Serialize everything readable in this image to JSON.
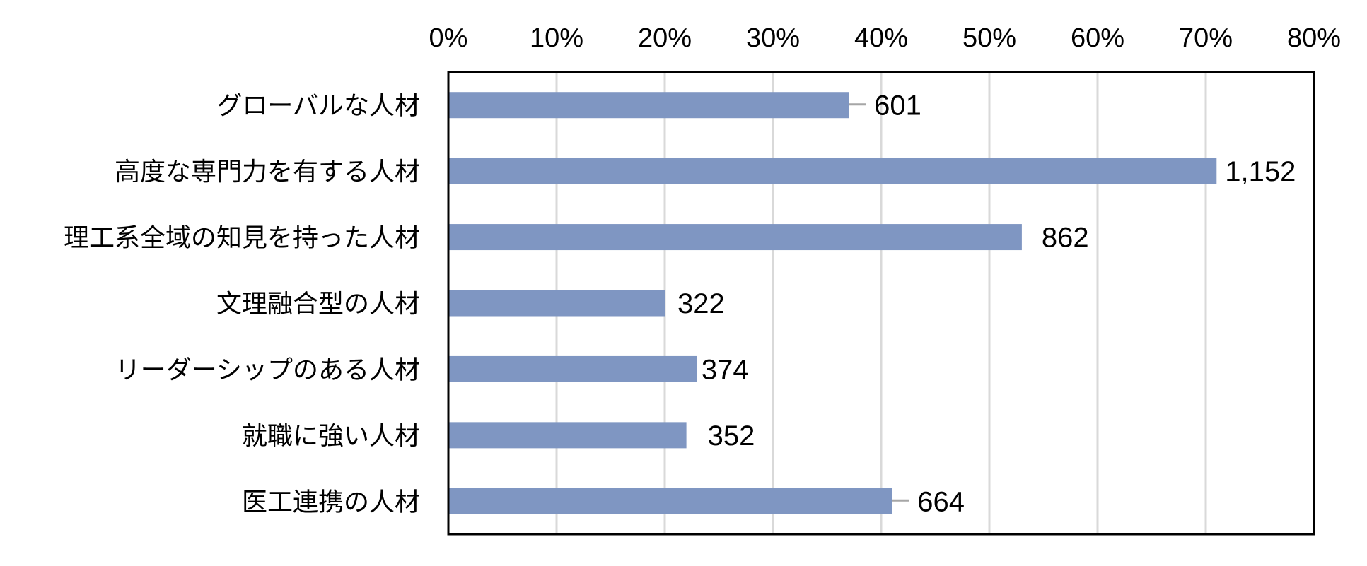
{
  "chart_data": {
    "type": "bar",
    "orientation": "horizontal",
    "title": "",
    "xlabel": "",
    "ylabel": "",
    "xlim": [
      0,
      80
    ],
    "x_ticks": [
      "0%",
      "10%",
      "20%",
      "30%",
      "40%",
      "50%",
      "60%",
      "70%",
      "80%"
    ],
    "x_axis_position": "top",
    "grid": true,
    "legend": "none",
    "categories": [
      "グローバルな人材",
      "高度な専門力を有する人材",
      "理工系全域の知見を持った人材",
      "文理融合型の人材",
      "リーダーシップのある人材",
      "就職に強い人材",
      "医工連携の人材"
    ],
    "values": [
      37,
      71,
      53,
      20,
      23,
      22,
      41
    ],
    "data_labels": [
      "601",
      "1,152",
      "862",
      "322",
      "374",
      "352",
      "664"
    ],
    "colors": {
      "bar": "#7f96c2",
      "grid": "#d9d9d9",
      "leader": "#a6a6a6",
      "frame": "#000000"
    }
  }
}
